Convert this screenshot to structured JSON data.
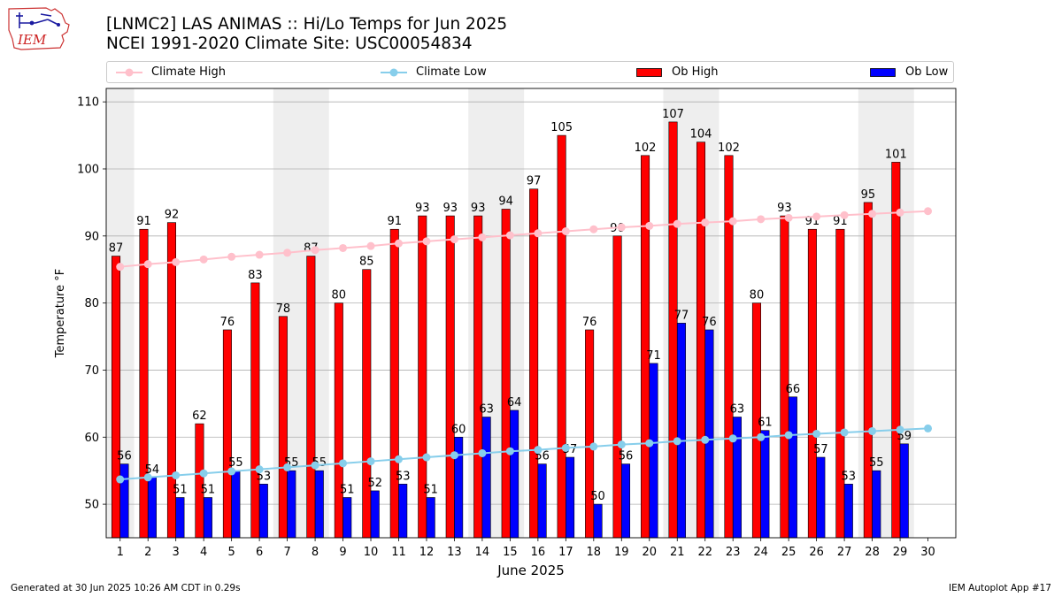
{
  "header": {
    "title_line1": "[LNMC2] LAS ANIMAS :: Hi/Lo Temps for Jun 2025",
    "title_line2": "NCEI 1991-2020 Climate Site: USC00054834",
    "logo_text": "IEM"
  },
  "legend": {
    "climate_high": "Climate High",
    "climate_low": "Climate Low",
    "ob_high": "Ob High",
    "ob_low": "Ob Low"
  },
  "colors": {
    "ob_high": "#ff0000",
    "ob_low": "#0000ff",
    "climate_high": "#ffc0cb",
    "climate_low": "#87ceeb",
    "weekend_band": "#eeeeee",
    "grid": "#b0b0b0"
  },
  "footer": {
    "left": "Generated at 30 Jun 2025 10:26 AM CDT in 0.29s",
    "right": "IEM Autoplot App #17"
  },
  "chart_data": {
    "type": "bar",
    "xlabel": "June 2025",
    "ylabel": "Temperature °F",
    "ylim": [
      45,
      112
    ],
    "yticks": [
      50,
      60,
      70,
      80,
      90,
      100,
      110
    ],
    "grid": true,
    "legend_position": "top",
    "categories": [
      1,
      2,
      3,
      4,
      5,
      6,
      7,
      8,
      9,
      10,
      11,
      12,
      13,
      14,
      15,
      16,
      17,
      18,
      19,
      20,
      21,
      22,
      23,
      24,
      25,
      26,
      27,
      28,
      29,
      30
    ],
    "weekend_bands": [
      [
        1,
        1
      ],
      [
        7,
        8
      ],
      [
        14,
        15
      ],
      [
        21,
        22
      ],
      [
        28,
        29
      ]
    ],
    "series": [
      {
        "name": "Ob High",
        "type": "bar",
        "values": [
          87,
          91,
          92,
          62,
          76,
          83,
          78,
          87,
          80,
          85,
          91,
          93,
          93,
          93,
          94,
          97,
          105,
          76,
          90,
          102,
          107,
          104,
          102,
          80,
          93,
          91,
          91,
          95,
          101,
          null
        ]
      },
      {
        "name": "Ob Low",
        "type": "bar",
        "values": [
          56,
          54,
          51,
          51,
          55,
          53,
          55,
          55,
          51,
          52,
          53,
          51,
          60,
          63,
          64,
          56,
          57,
          50,
          56,
          71,
          77,
          76,
          63,
          61,
          66,
          57,
          53,
          55,
          59,
          null
        ]
      },
      {
        "name": "Climate High",
        "type": "line",
        "values": [
          85.4,
          85.8,
          86.1,
          86.5,
          86.9,
          87.2,
          87.5,
          87.9,
          88.2,
          88.5,
          88.9,
          89.2,
          89.5,
          89.8,
          90.1,
          90.4,
          90.7,
          91.0,
          91.3,
          91.5,
          91.8,
          92.0,
          92.2,
          92.5,
          92.7,
          92.9,
          93.1,
          93.3,
          93.5,
          93.7
        ]
      },
      {
        "name": "Climate Low",
        "type": "line",
        "values": [
          53.7,
          54.0,
          54.3,
          54.6,
          54.9,
          55.2,
          55.5,
          55.8,
          56.1,
          56.4,
          56.7,
          57.0,
          57.3,
          57.6,
          57.9,
          58.1,
          58.4,
          58.6,
          58.9,
          59.1,
          59.4,
          59.6,
          59.8,
          60.0,
          60.3,
          60.5,
          60.7,
          60.9,
          61.1,
          61.3
        ]
      }
    ]
  }
}
